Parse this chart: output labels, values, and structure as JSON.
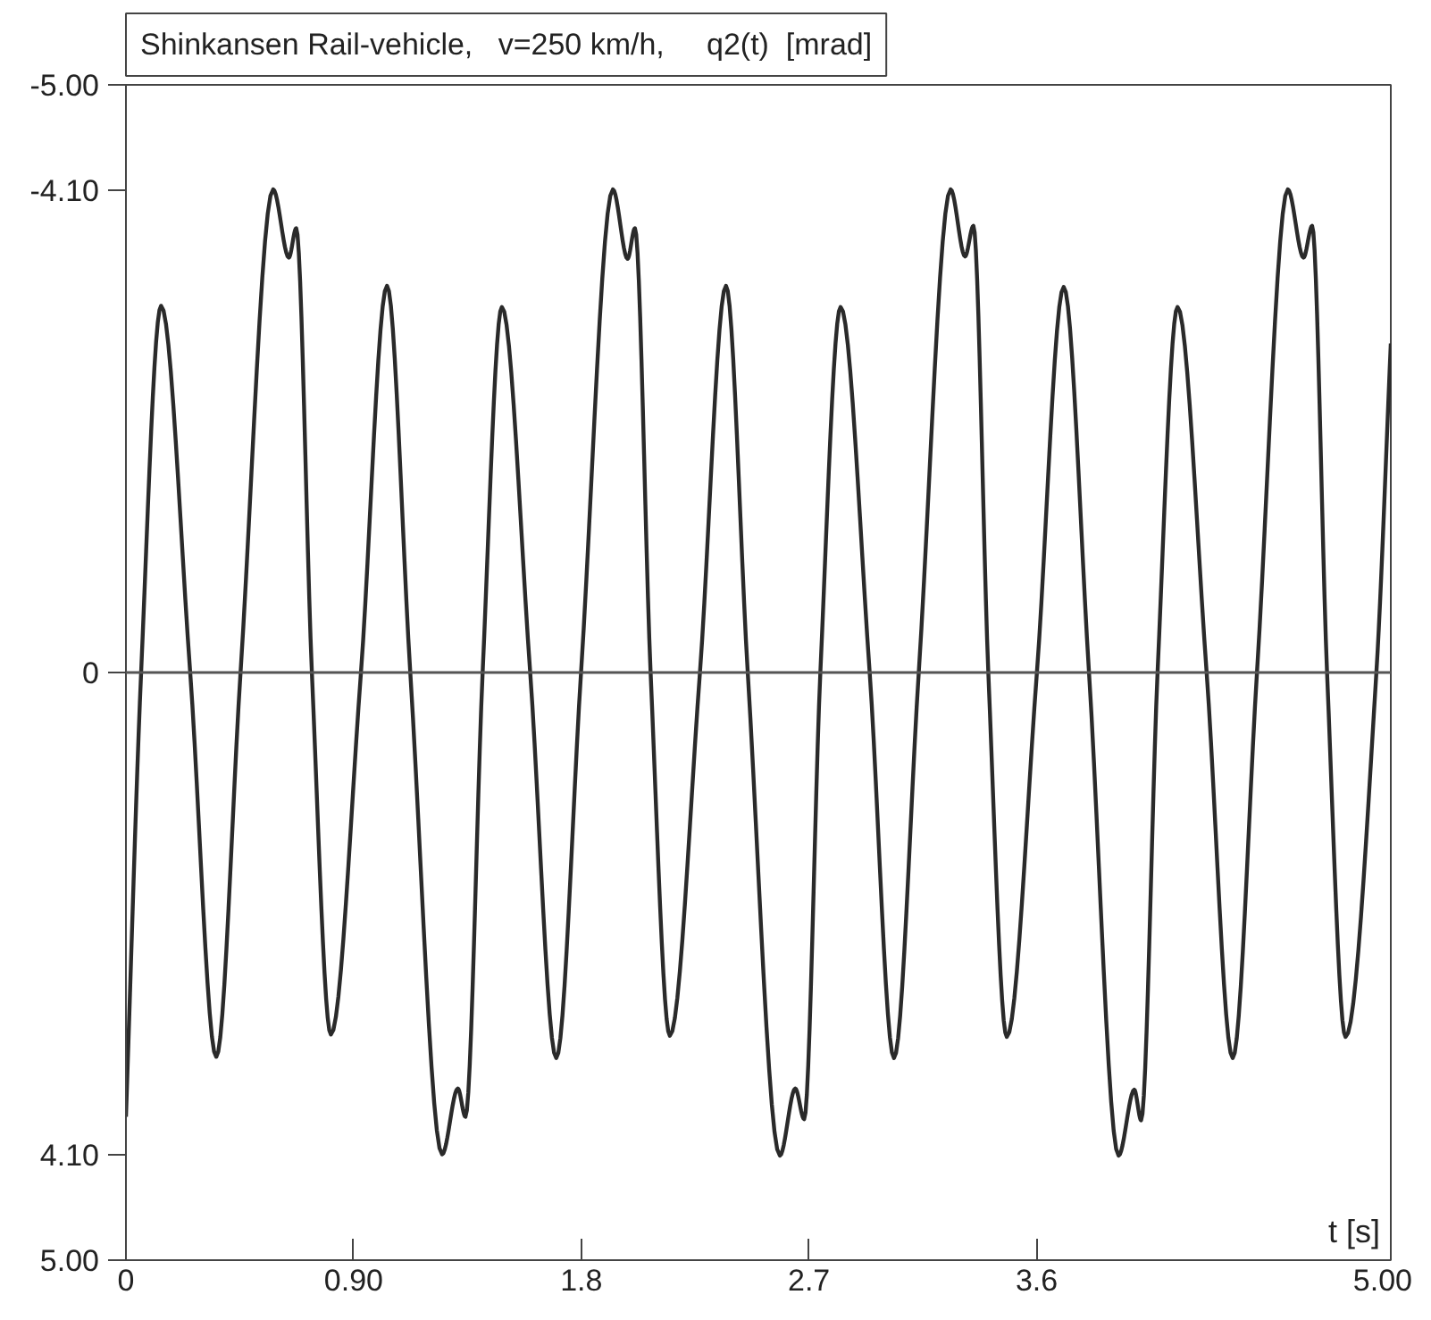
{
  "chart_data": {
    "type": "line",
    "title": "Shinkansen Rail-vehicle,   v=250 km/h,     q2(t)  [mrad]",
    "xlabel": "t [s]",
    "xlim": [
      0,
      5
    ],
    "ylim": [
      5,
      -5
    ],
    "xticks": [
      {
        "value": 0,
        "label": "0"
      },
      {
        "value": 0.9,
        "label": "0.90"
      },
      1.8,
      2.7,
      3.6,
      {
        "value": 5,
        "label": "5.00"
      }
    ],
    "yticks": [
      {
        "value": -5,
        "label": "-5.00"
      },
      {
        "value": -4.1,
        "label": "-4.10"
      },
      0,
      {
        "value": 4.1,
        "label": "4.10"
      },
      {
        "value": 5,
        "label": "5.00"
      }
    ],
    "grid": false,
    "marker": "none",
    "line_style": "solid",
    "ref_lines": [
      {
        "axis": "y",
        "value": 0,
        "color": "#555555"
      }
    ],
    "series": [
      {
        "color": "#2a2a2a",
        "x": [
          0,
          0.06,
          0.139,
          0.254,
          0.357,
          0.453,
          0.582,
          0.644,
          0.673,
          0.735,
          0.81,
          0.929,
          1.032,
          1.124,
          1.25,
          1.312,
          1.342,
          1.41,
          1.486,
          1.598,
          1.701,
          1.799,
          1.925,
          1.983,
          2.012,
          2.074,
          2.15,
          2.269,
          2.372,
          2.458,
          2.585,
          2.646,
          2.681,
          2.745,
          2.825,
          2.94,
          3.036,
          3.134,
          3.26,
          3.317,
          3.35,
          3.409,
          3.482,
          3.601,
          3.707,
          3.807,
          3.924,
          3.986,
          4.013,
          4.078,
          4.157,
          4.272,
          4.375,
          4.471,
          4.593,
          4.655,
          4.689,
          4.748,
          4.821,
          4.943,
          5.0
        ],
        "values": [
          3.78,
          0,
          -3.12,
          0,
          3.27,
          0,
          -4.11,
          -3.53,
          -3.78,
          0,
          3.08,
          0,
          -3.29,
          0,
          4.1,
          3.54,
          3.78,
          0,
          -3.11,
          0,
          3.28,
          0,
          -4.11,
          -3.52,
          -3.78,
          0,
          3.09,
          0,
          -3.29,
          0,
          4.11,
          3.54,
          3.8,
          0,
          -3.11,
          0,
          3.28,
          0,
          -4.11,
          -3.54,
          -3.8,
          0,
          3.1,
          0,
          -3.28,
          0,
          4.11,
          3.55,
          3.81,
          0,
          -3.11,
          0,
          3.28,
          0,
          -4.11,
          -3.53,
          -3.8,
          0,
          3.1,
          0,
          -2.8
        ]
      }
    ]
  }
}
